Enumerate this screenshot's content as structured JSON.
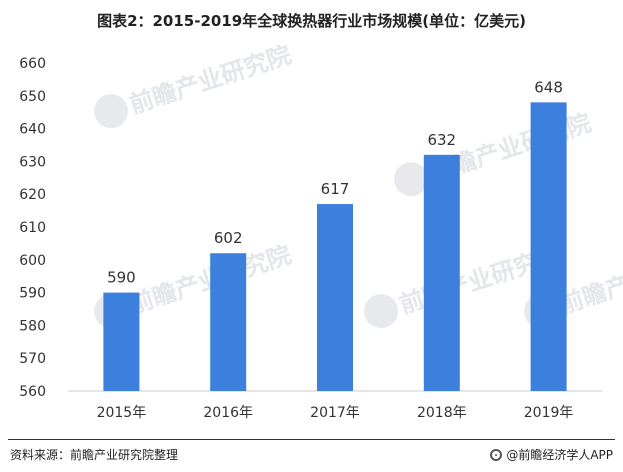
{
  "chart_data": {
    "type": "bar",
    "title": "图表2：2015-2019年全球换热器行业市场规模(单位：亿美元)",
    "categories": [
      "2015年",
      "2016年",
      "2017年",
      "2018年",
      "2019年"
    ],
    "values": [
      590,
      602,
      617,
      632,
      648
    ],
    "ylim": [
      560,
      660
    ],
    "yticks": [
      560,
      570,
      580,
      590,
      600,
      610,
      620,
      630,
      640,
      650,
      660
    ],
    "grid": false,
    "legend": "none",
    "bar_color": "#3d7fdc",
    "data_labels": true
  },
  "watermark": {
    "text": "前瞻产业研究院",
    "icon": "qianzhan-logo-icon"
  },
  "footer": {
    "source": "资料来源：前瞻产业研究院整理",
    "brand": "@前瞻经济学人APP",
    "brand_icon": "qianzhan-logo-icon"
  }
}
